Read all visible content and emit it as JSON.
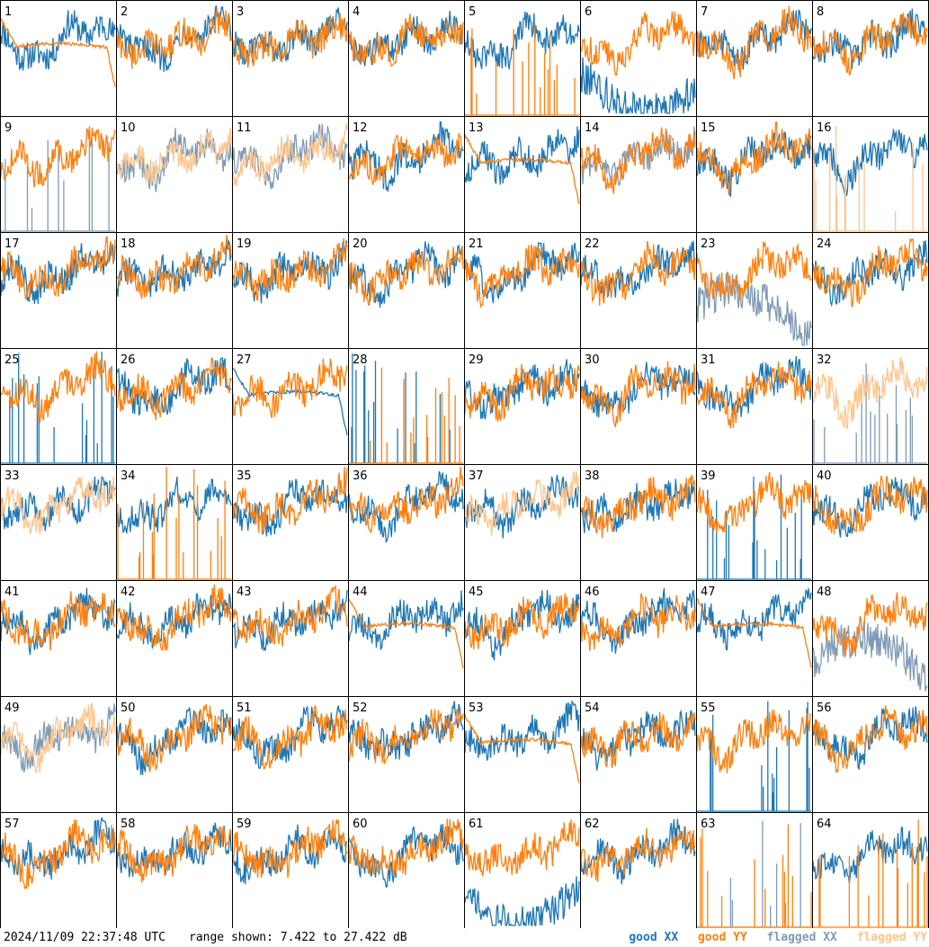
{
  "footer": {
    "timestamp": "2024/11/09 22:37:48 UTC",
    "range_text": "range shown: 7.422 to 27.422 dB"
  },
  "colors": {
    "good_xx": "#1f77b4",
    "good_yy": "#ff7f0e",
    "flagged_xx": "#7f9bb5",
    "flagged_yy": "#ffc48c"
  },
  "chart_data": {
    "type": "line",
    "grid": "8x8 small multiples",
    "ylim": [
      7.422,
      27.422
    ],
    "legend": [
      {
        "key": "good_xx",
        "label": "good XX"
      },
      {
        "key": "good_yy",
        "label": "good YY"
      },
      {
        "key": "flagged_xx",
        "label": "flagged XX"
      },
      {
        "key": "flagged_yy",
        "label": "flagged YY"
      }
    ],
    "panels": [
      {
        "label": "1",
        "xx": "good",
        "yy": "good",
        "yy_mode": "smooth"
      },
      {
        "label": "2",
        "xx": "good",
        "yy": "good"
      },
      {
        "label": "3",
        "xx": "good",
        "yy": "good"
      },
      {
        "label": "4",
        "xx": "good",
        "yy": "good"
      },
      {
        "label": "5",
        "xx": "good",
        "yy": "good",
        "yy_mode": "spikes"
      },
      {
        "label": "6",
        "xx": "good",
        "yy": "good",
        "xx_mode": "low"
      },
      {
        "label": "7",
        "xx": "good",
        "yy": "good"
      },
      {
        "label": "8",
        "xx": "good",
        "yy": "good"
      },
      {
        "label": "9",
        "xx": "flagged",
        "yy": "good",
        "xx_mode": "spikes"
      },
      {
        "label": "10",
        "xx": "flagged",
        "yy": "flagged"
      },
      {
        "label": "11",
        "xx": "flagged",
        "yy": "flagged"
      },
      {
        "label": "12",
        "xx": "good",
        "yy": "good"
      },
      {
        "label": "13",
        "xx": "good",
        "yy": "good",
        "yy_mode": "smooth"
      },
      {
        "label": "14",
        "xx": "flagged",
        "yy": "good"
      },
      {
        "label": "15",
        "xx": "good",
        "yy": "good"
      },
      {
        "label": "16",
        "xx": "good",
        "yy": "flagged",
        "yy_mode": "spikes"
      },
      {
        "label": "17",
        "xx": "good",
        "yy": "good"
      },
      {
        "label": "18",
        "xx": "good",
        "yy": "good"
      },
      {
        "label": "19",
        "xx": "good",
        "yy": "good"
      },
      {
        "label": "20",
        "xx": "good",
        "yy": "good"
      },
      {
        "label": "21",
        "xx": "good",
        "yy": "good"
      },
      {
        "label": "22",
        "xx": "good",
        "yy": "good"
      },
      {
        "label": "23",
        "xx": "flagged",
        "yy": "good",
        "xx_mode": "low"
      },
      {
        "label": "24",
        "xx": "good",
        "yy": "good"
      },
      {
        "label": "25",
        "xx": "good",
        "yy": "good",
        "xx_mode": "spikes"
      },
      {
        "label": "26",
        "xx": "good",
        "yy": "good"
      },
      {
        "label": "27",
        "xx": "good",
        "yy": "good",
        "xx_mode": "smooth"
      },
      {
        "label": "28",
        "xx": "good",
        "yy": "good",
        "xx_mode": "spikes",
        "yy_mode": "spikes"
      },
      {
        "label": "29",
        "xx": "good",
        "yy": "good"
      },
      {
        "label": "30",
        "xx": "good",
        "yy": "good"
      },
      {
        "label": "31",
        "xx": "good",
        "yy": "good"
      },
      {
        "label": "32",
        "xx": "flagged",
        "yy": "flagged",
        "xx_mode": "spikes"
      },
      {
        "label": "33",
        "xx": "good",
        "yy": "flagged"
      },
      {
        "label": "34",
        "xx": "good",
        "yy": "good",
        "yy_mode": "spikes"
      },
      {
        "label": "35",
        "xx": "good",
        "yy": "good"
      },
      {
        "label": "36",
        "xx": "good",
        "yy": "good"
      },
      {
        "label": "37",
        "xx": "good",
        "yy": "flagged"
      },
      {
        "label": "38",
        "xx": "good",
        "yy": "good"
      },
      {
        "label": "39",
        "xx": "good",
        "yy": "good",
        "xx_mode": "spikes"
      },
      {
        "label": "40",
        "xx": "good",
        "yy": "good"
      },
      {
        "label": "41",
        "xx": "good",
        "yy": "good"
      },
      {
        "label": "42",
        "xx": "good",
        "yy": "good"
      },
      {
        "label": "43",
        "xx": "good",
        "yy": "good"
      },
      {
        "label": "44",
        "xx": "good",
        "yy": "good",
        "yy_mode": "smooth"
      },
      {
        "label": "45",
        "xx": "good",
        "yy": "good"
      },
      {
        "label": "46",
        "xx": "good",
        "yy": "good"
      },
      {
        "label": "47",
        "xx": "good",
        "yy": "good",
        "yy_mode": "smooth"
      },
      {
        "label": "48",
        "xx": "flagged",
        "yy": "good",
        "xx_mode": "low"
      },
      {
        "label": "49",
        "xx": "flagged",
        "yy": "flagged"
      },
      {
        "label": "50",
        "xx": "good",
        "yy": "good"
      },
      {
        "label": "51",
        "xx": "good",
        "yy": "good"
      },
      {
        "label": "52",
        "xx": "good",
        "yy": "good"
      },
      {
        "label": "53",
        "xx": "good",
        "yy": "good",
        "yy_mode": "smooth"
      },
      {
        "label": "54",
        "xx": "good",
        "yy": "good"
      },
      {
        "label": "55",
        "xx": "good",
        "yy": "good",
        "xx_mode": "spikes"
      },
      {
        "label": "56",
        "xx": "good",
        "yy": "good"
      },
      {
        "label": "57",
        "xx": "good",
        "yy": "good"
      },
      {
        "label": "58",
        "xx": "good",
        "yy": "good"
      },
      {
        "label": "59",
        "xx": "good",
        "yy": "good"
      },
      {
        "label": "60",
        "xx": "good",
        "yy": "good"
      },
      {
        "label": "61",
        "xx": "good",
        "yy": "good",
        "xx_mode": "low"
      },
      {
        "label": "62",
        "xx": "good",
        "yy": "good"
      },
      {
        "label": "63",
        "xx": "flagged",
        "yy": "good",
        "xx_mode": "spikes",
        "yy_mode": "spikes"
      },
      {
        "label": "64",
        "xx": "good",
        "yy": "good",
        "yy_mode": "spikes"
      }
    ]
  }
}
